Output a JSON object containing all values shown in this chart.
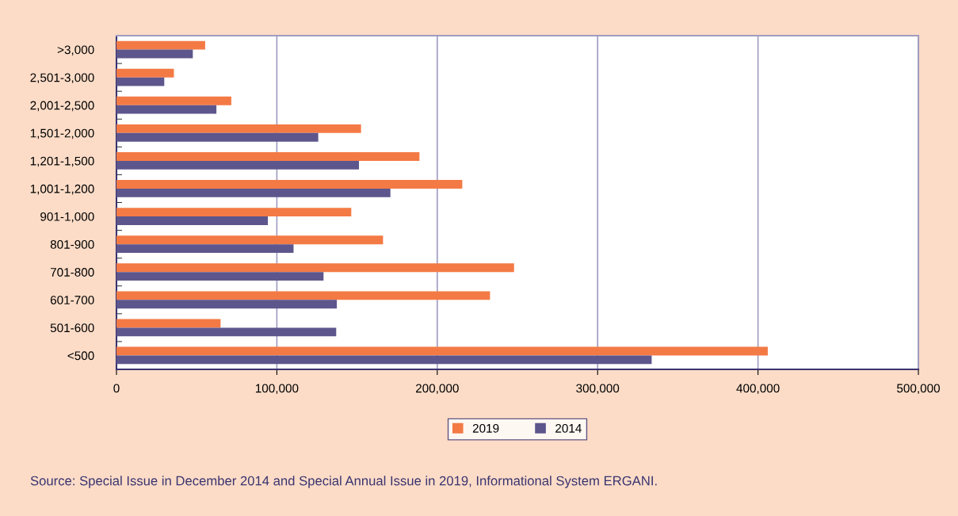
{
  "chart_data": {
    "type": "bar",
    "orientation": "horizontal",
    "categories": [
      ">3,000",
      "2,501-3,000",
      "2,001-2,500",
      "1,501-2,000",
      "1,201-1,500",
      "1,001-1,200",
      "901-1,000",
      "801-900",
      "701-800",
      "601-700",
      "501-600",
      "<500"
    ],
    "series": [
      {
        "name": "2019",
        "color": "#f47a45",
        "values": [
          55300,
          35800,
          71600,
          152500,
          188900,
          215600,
          146400,
          166200,
          247900,
          232900,
          64900,
          406100
        ]
      },
      {
        "name": "2014",
        "color": "#5d568c",
        "values": [
          47600,
          29800,
          62300,
          125800,
          151200,
          170800,
          94400,
          110400,
          129100,
          137400,
          137000,
          333700
        ]
      }
    ],
    "xlim": [
      0,
      500000
    ],
    "xticks": [
      {
        "value": 0,
        "label": "0"
      },
      {
        "value": 100000,
        "label": "100,000"
      },
      {
        "value": 200000,
        "label": "200,000"
      },
      {
        "value": 300000,
        "label": "300,000"
      },
      {
        "value": 400000,
        "label": "400,000"
      },
      {
        "value": 500000,
        "label": "500,000"
      }
    ],
    "grid": "x",
    "legend": "bottom",
    "annotations": [
      "Source: Special Issue in December 2014 and Special Annual Issue in 2019, Informational System ERGANI."
    ]
  }
}
